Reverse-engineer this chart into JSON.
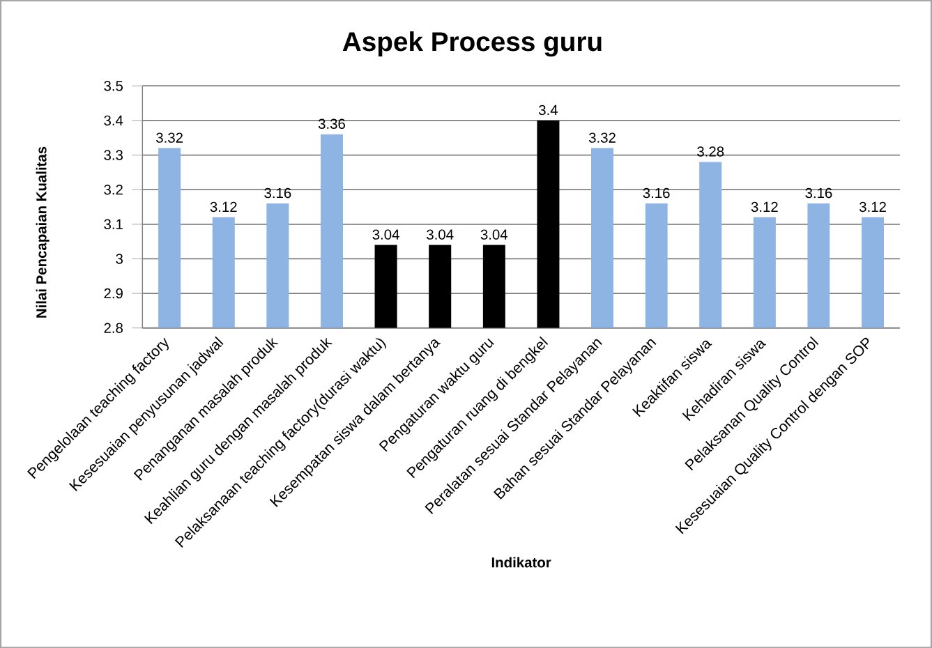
{
  "chart_data": {
    "type": "bar",
    "title": "Aspek Process guru",
    "xlabel": "Indikator",
    "ylabel": "Nilai Pencapaian Kualitas",
    "categories": [
      "Pengelolaan teaching factory",
      "Kesesuaian penyusunan jadwal",
      "Penanganan masalah produk",
      "Keahlian guru dengan masalah produk",
      "Pelaksanaan teaching factory(durasi waktu)",
      "Kesempatan siswa dalam bertanya",
      "Pengaturan waktu guru",
      "Pengaturan ruang di bengkel",
      "Peralatan sesuai Standar Pelayanan",
      "Bahan sesuai Standar Pelayanan",
      "Keaktifan siswa",
      "Kehadiran siswa",
      "Pelaksanan Quality Control",
      "Kesesuaian Quality Control dengan SOP"
    ],
    "values": [
      3.32,
      3.12,
      3.16,
      3.36,
      3.04,
      3.04,
      3.04,
      3.4,
      3.32,
      3.16,
      3.28,
      3.12,
      3.16,
      3.12
    ],
    "colors": [
      "#8eb4e3",
      "#8eb4e3",
      "#8eb4e3",
      "#8eb4e3",
      "#000000",
      "#000000",
      "#000000",
      "#000000",
      "#8eb4e3",
      "#8eb4e3",
      "#8eb4e3",
      "#8eb4e3",
      "#8eb4e3",
      "#8eb4e3"
    ],
    "ylim": [
      2.8,
      3.5
    ],
    "yticks": [
      2.8,
      2.9,
      3,
      3.1,
      3.2,
      3.3,
      3.4,
      3.5
    ],
    "grid": true,
    "data_labels": true
  }
}
